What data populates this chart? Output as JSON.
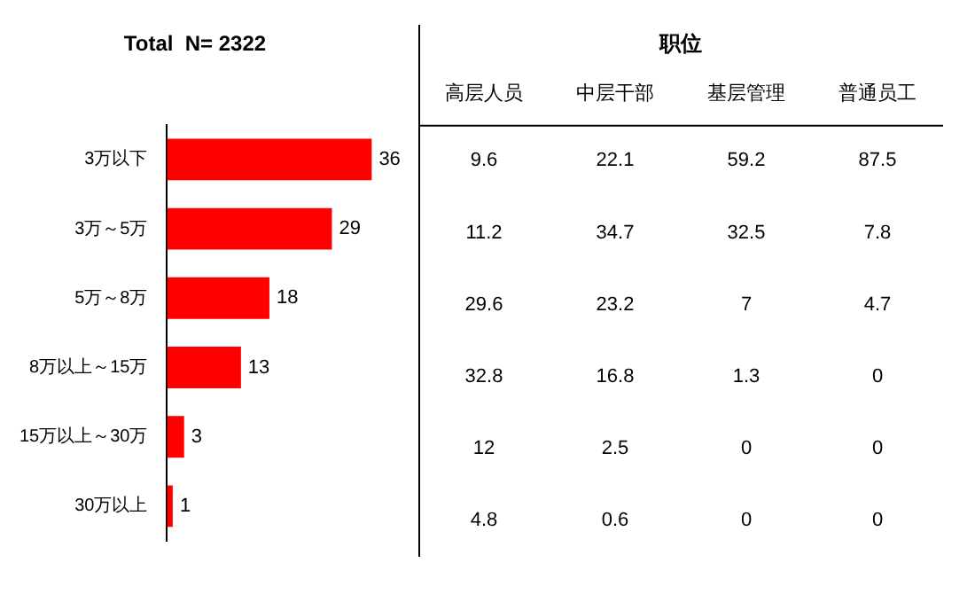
{
  "chart_data": [
    {
      "type": "bar",
      "title": "Total  N= 2322",
      "orientation": "horizontal",
      "categories": [
        "3万以下",
        "3万～5万",
        "5万～8万",
        "8万以上～15万",
        "15万以上～30万",
        "30万以上"
      ],
      "values": [
        36,
        29,
        18,
        13,
        3,
        1
      ],
      "color": "#ff0000",
      "data_labels": true,
      "grid": false,
      "legend": false
    },
    {
      "type": "heatmap",
      "title": "职位",
      "categories": [
        "高层人员",
        "中层干部",
        "基层管理",
        "普通员工"
      ],
      "y_categories": [
        null,
        null,
        null,
        null,
        null,
        null
      ],
      "data_labels": true,
      "cells": [
        [
          9.6,
          22.1,
          59.2,
          87.5
        ],
        [
          11.2,
          34.7,
          32.5,
          7.8
        ],
        [
          29.6,
          23.2,
          7,
          4.7
        ],
        [
          32.8,
          16.8,
          1.3,
          0
        ],
        [
          12,
          2.5,
          0,
          0
        ],
        [
          4.8,
          0.6,
          0,
          0
        ]
      ],
      "tick_labels": "x",
      "grid": false,
      "legend": false
    }
  ]
}
